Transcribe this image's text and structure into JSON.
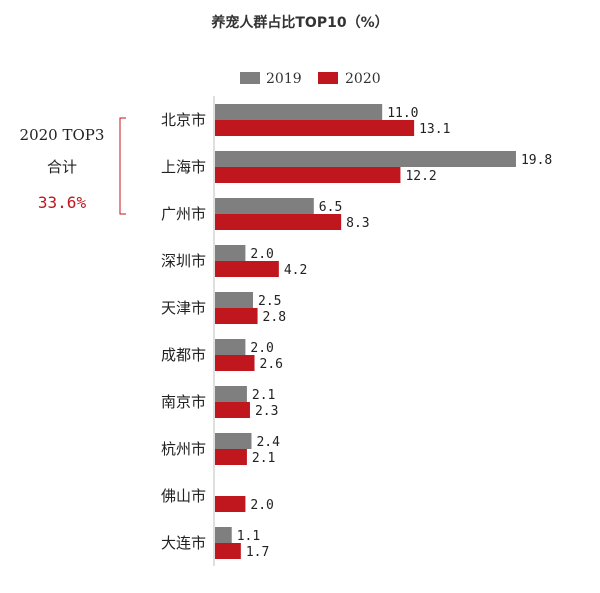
{
  "chart_data": {
    "type": "bar",
    "orientation": "horizontal",
    "title": "养宠人群占比TOP10（%）",
    "categories": [
      "北京市",
      "上海市",
      "广州市",
      "深圳市",
      "天津市",
      "成都市",
      "南京市",
      "杭州市",
      "佛山市",
      "大连市"
    ],
    "series": [
      {
        "name": "2019",
        "color": "#7f7f7f",
        "values": [
          11.0,
          19.8,
          6.5,
          2.0,
          2.5,
          2.0,
          2.1,
          2.4,
          null,
          1.1
        ],
        "labels": [
          "11.0",
          "19.8",
          "6.5",
          "2.0",
          "2.5",
          "2.0",
          "2.1",
          "2.4",
          "",
          "1.1"
        ]
      },
      {
        "name": "2020",
        "color": "#c0161e",
        "values": [
          13.1,
          12.2,
          8.3,
          4.2,
          2.8,
          2.6,
          2.3,
          2.1,
          2.0,
          1.7
        ],
        "labels": [
          "13.1",
          "12.2",
          "8.3",
          "4.2",
          "2.8",
          "2.6",
          "2.3",
          "2.1",
          "2.0",
          "1.7"
        ]
      }
    ],
    "xlim": [
      0,
      20
    ],
    "grid": false,
    "legend_position": "top",
    "annotation": {
      "line1": "2020 TOP3",
      "line2": "合计",
      "value": "33.6%",
      "value_color": "#c0161e"
    }
  }
}
